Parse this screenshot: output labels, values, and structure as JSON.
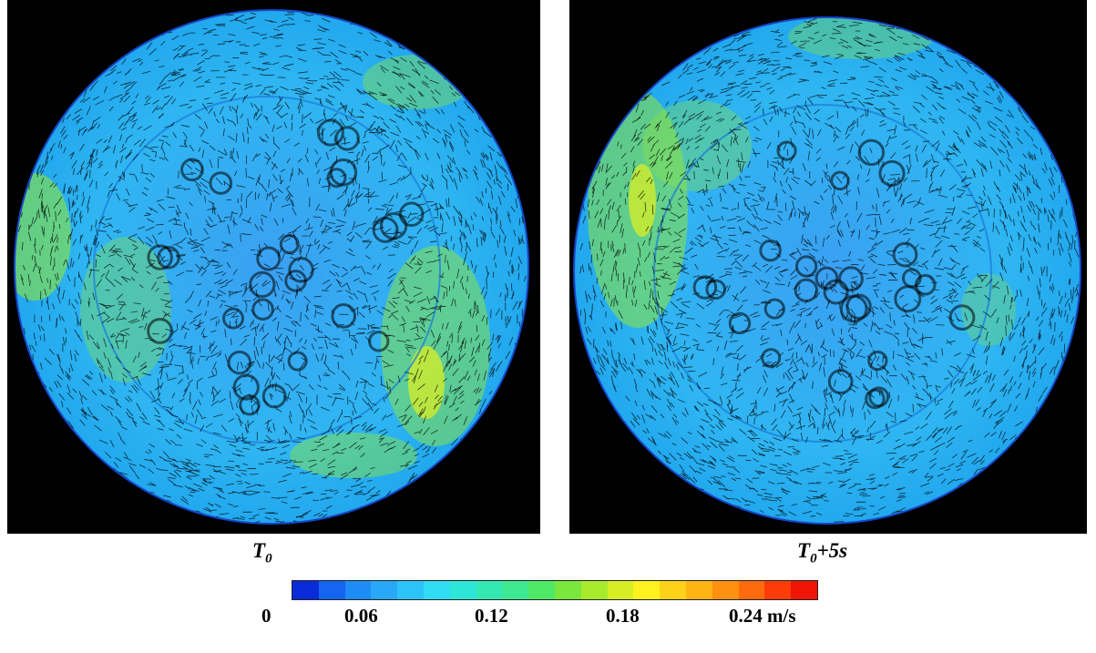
{
  "captions": {
    "left": {
      "base": "T",
      "sub": "0",
      "suffix": ""
    },
    "right": {
      "base": "T",
      "sub": "0",
      "suffix": "+5s"
    }
  },
  "colorbar": {
    "ticks": [
      "0",
      "0.06",
      "0.12",
      "0.18",
      "0.24 m/s"
    ],
    "colors": [
      "#0a2bd8",
      "#1565f0",
      "#1e8cf5",
      "#28a8f7",
      "#2cc4f8",
      "#30dcf4",
      "#2ee6d8",
      "#34e8b4",
      "#3ee890",
      "#4ee866",
      "#7ae63e",
      "#a8ea2c",
      "#d8ee24",
      "#fff21e",
      "#ffd21a",
      "#ffb414",
      "#ff9010",
      "#ff6a0c",
      "#ff3c08",
      "#f01404"
    ]
  },
  "figure": {
    "background": "#000000",
    "disk_base_color": "#2ea4f0",
    "high_speed_color": "#8ee63a",
    "vector_color": "#000000"
  }
}
